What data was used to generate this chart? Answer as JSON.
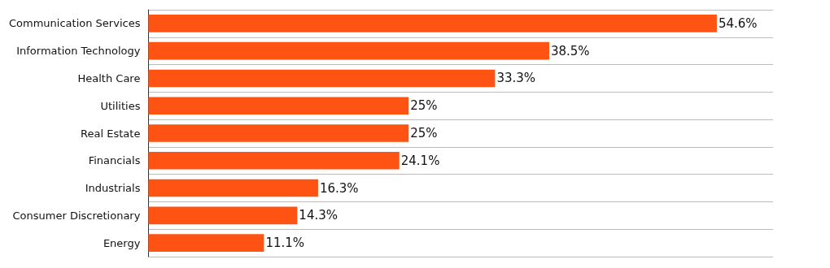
{
  "chart_data": {
    "type": "bar",
    "orientation": "horizontal",
    "categories": [
      "Communication Services",
      "Information Technology",
      "Health Care",
      "Utilities",
      "Real Estate",
      "Financials",
      "Industrials",
      "Consumer Discretionary",
      "Energy"
    ],
    "values": [
      54.6,
      38.5,
      33.3,
      25,
      25,
      24.1,
      16.3,
      14.3,
      11.1
    ],
    "value_labels": [
      "54.6%",
      "38.5%",
      "33.3%",
      "25%",
      "25%",
      "24.1%",
      "16.3%",
      "14.3%",
      "11.1%"
    ],
    "color": "#ff5314",
    "grid": "y",
    "tick_labels": "y"
  }
}
